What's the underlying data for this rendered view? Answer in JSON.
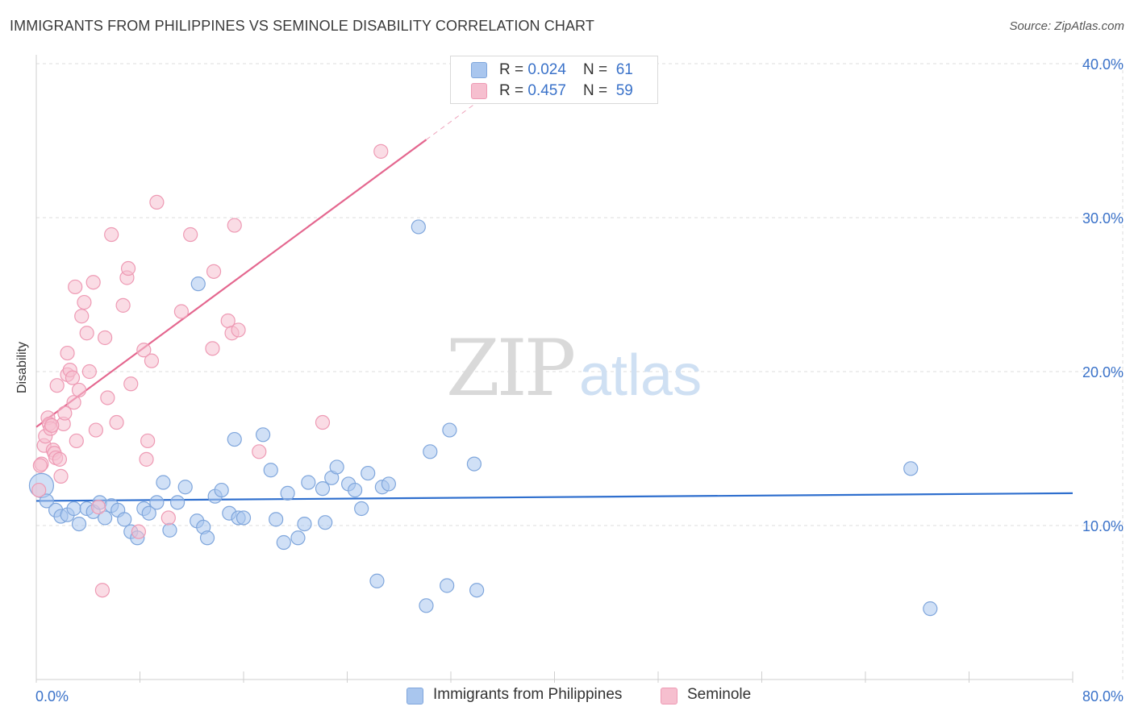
{
  "chart_data": {
    "type": "scatter",
    "title": "IMMIGRANTS FROM PHILIPPINES VS SEMINOLE DISABILITY CORRELATION CHART",
    "source": "Source: ZipAtlas.com",
    "ylabel": "Disability",
    "xlabel": "",
    "xlim": [
      0,
      80
    ],
    "ylim": [
      0,
      40
    ],
    "x_tick_labels": [
      "0.0%",
      "80.0%"
    ],
    "y_ticks": [
      10,
      20,
      30,
      40
    ],
    "y_tick_labels": [
      "10.0%",
      "20.0%",
      "30.0%",
      "40.0%"
    ],
    "grid": true,
    "watermark": {
      "zip": "ZIP",
      "atlas": "atlas"
    },
    "legend_stats": [
      {
        "r_label": "R = ",
        "r_value": "0.024",
        "n_label": "N = ",
        "n_value": "61"
      },
      {
        "r_label": "R = ",
        "r_value": "0.457",
        "n_label": "N = ",
        "n_value": "59"
      }
    ],
    "series": [
      {
        "name": "Immigrants from Philippines",
        "color": "#a9c6ee",
        "edge_color": "#7fa6dc",
        "line_color": "#2f6fce",
        "trend": {
          "x0": 0,
          "y0": 11.6,
          "x1": 80,
          "y1": 12.1,
          "solid_to": 80
        },
        "points": [
          [
            0.4,
            12.6,
            3
          ],
          [
            0.8,
            11.6,
            1
          ],
          [
            1.5,
            11.0,
            1
          ],
          [
            1.9,
            10.6,
            1
          ],
          [
            2.4,
            10.7,
            1
          ],
          [
            2.9,
            11.1,
            1
          ],
          [
            3.3,
            10.1,
            1
          ],
          [
            3.9,
            11.1,
            1
          ],
          [
            4.4,
            10.9,
            1
          ],
          [
            4.9,
            11.5,
            1
          ],
          [
            5.3,
            10.5,
            1
          ],
          [
            5.8,
            11.3,
            1
          ],
          [
            6.3,
            11.0,
            1
          ],
          [
            6.8,
            10.4,
            1
          ],
          [
            7.3,
            9.6,
            1
          ],
          [
            7.8,
            9.2,
            1
          ],
          [
            8.3,
            11.1,
            1
          ],
          [
            8.7,
            10.8,
            1
          ],
          [
            9.3,
            11.5,
            1
          ],
          [
            9.8,
            12.8,
            1
          ],
          [
            10.3,
            9.7,
            1
          ],
          [
            10.9,
            11.5,
            1
          ],
          [
            11.5,
            12.5,
            1
          ],
          [
            12.4,
            10.3,
            1
          ],
          [
            12.9,
            9.9,
            1
          ],
          [
            13.2,
            9.2,
            1
          ],
          [
            13.8,
            11.9,
            1
          ],
          [
            14.3,
            12.3,
            1
          ],
          [
            14.9,
            10.8,
            1
          ],
          [
            15.6,
            10.5,
            1
          ],
          [
            16.0,
            10.5,
            1
          ],
          [
            15.3,
            15.6,
            1
          ],
          [
            17.5,
            15.9,
            1
          ],
          [
            18.1,
            13.6,
            1
          ],
          [
            18.5,
            10.4,
            1
          ],
          [
            19.1,
            8.9,
            1
          ],
          [
            19.4,
            12.1,
            1
          ],
          [
            20.2,
            9.2,
            1
          ],
          [
            20.7,
            10.1,
            1
          ],
          [
            21.0,
            12.8,
            1
          ],
          [
            22.1,
            12.4,
            1
          ],
          [
            22.3,
            10.2,
            1
          ],
          [
            22.8,
            13.1,
            1
          ],
          [
            23.2,
            13.8,
            1
          ],
          [
            24.1,
            12.7,
            1
          ],
          [
            24.6,
            12.3,
            1
          ],
          [
            25.1,
            11.1,
            1
          ],
          [
            25.6,
            13.4,
            1
          ],
          [
            26.3,
            6.4,
            1
          ],
          [
            26.7,
            12.5,
            1
          ],
          [
            27.2,
            12.7,
            1
          ],
          [
            29.5,
            29.4,
            1
          ],
          [
            30.1,
            4.8,
            1
          ],
          [
            30.4,
            14.8,
            1
          ],
          [
            31.7,
            6.1,
            1
          ],
          [
            31.9,
            16.2,
            1
          ],
          [
            12.5,
            25.7,
            1
          ],
          [
            33.8,
            14.0,
            1
          ],
          [
            34.0,
            5.8,
            1
          ],
          [
            69.0,
            4.6,
            1
          ],
          [
            67.5,
            13.7,
            1
          ]
        ]
      },
      {
        "name": "Seminole",
        "color": "#f6bfcf",
        "edge_color": "#ee9ab4",
        "line_color": "#e4678f",
        "trend": {
          "x0": 0,
          "y0": 16.4,
          "x1": 80,
          "y1": 66.0,
          "solid_to": 30.1
        },
        "points": [
          [
            0.2,
            12.3,
            1
          ],
          [
            0.4,
            14.0,
            1
          ],
          [
            0.6,
            15.2,
            1
          ],
          [
            0.7,
            15.8,
            1
          ],
          [
            0.9,
            17.0,
            1
          ],
          [
            1.0,
            16.6,
            1
          ],
          [
            1.1,
            16.3,
            1
          ],
          [
            1.3,
            14.9,
            1
          ],
          [
            1.4,
            14.7,
            1
          ],
          [
            1.5,
            14.4,
            1
          ],
          [
            1.6,
            19.1,
            1
          ],
          [
            1.8,
            14.3,
            1
          ],
          [
            1.9,
            13.2,
            1
          ],
          [
            2.1,
            16.6,
            1
          ],
          [
            2.2,
            17.3,
            1
          ],
          [
            2.4,
            21.2,
            1
          ],
          [
            2.4,
            19.8,
            1
          ],
          [
            2.6,
            20.1,
            1
          ],
          [
            2.8,
            19.6,
            1
          ],
          [
            2.9,
            18.0,
            1
          ],
          [
            3.0,
            25.5,
            1
          ],
          [
            3.1,
            15.5,
            1
          ],
          [
            3.3,
            18.8,
            1
          ],
          [
            3.5,
            23.6,
            1
          ],
          [
            3.7,
            24.5,
            1
          ],
          [
            3.9,
            22.5,
            1
          ],
          [
            4.1,
            20.0,
            1
          ],
          [
            4.4,
            25.8,
            1
          ],
          [
            4.6,
            16.2,
            1
          ],
          [
            4.8,
            11.2,
            1
          ],
          [
            5.1,
            5.8,
            1
          ],
          [
            5.3,
            22.2,
            1
          ],
          [
            5.5,
            18.3,
            1
          ],
          [
            5.8,
            28.9,
            1
          ],
          [
            6.2,
            16.7,
            1
          ],
          [
            6.7,
            24.3,
            1
          ],
          [
            7.0,
            26.1,
            1
          ],
          [
            7.1,
            26.7,
            1
          ],
          [
            7.3,
            19.2,
            1
          ],
          [
            7.9,
            9.6,
            1
          ],
          [
            8.3,
            21.4,
            1
          ],
          [
            8.5,
            14.3,
            1
          ],
          [
            8.6,
            15.5,
            1
          ],
          [
            8.9,
            20.7,
            1
          ],
          [
            9.3,
            31.0,
            1
          ],
          [
            10.2,
            10.5,
            1
          ],
          [
            11.2,
            23.9,
            1
          ],
          [
            11.9,
            28.9,
            1
          ],
          [
            13.6,
            21.5,
            1
          ],
          [
            13.7,
            26.5,
            1
          ],
          [
            14.8,
            23.3,
            1
          ],
          [
            15.1,
            22.5,
            1
          ],
          [
            15.3,
            29.5,
            1
          ],
          [
            15.6,
            22.7,
            1
          ],
          [
            17.2,
            14.8,
            1
          ],
          [
            22.1,
            16.7,
            1
          ],
          [
            26.6,
            34.3,
            1
          ],
          [
            0.3,
            13.9,
            1
          ],
          [
            1.2,
            16.5,
            1
          ]
        ]
      }
    ]
  }
}
